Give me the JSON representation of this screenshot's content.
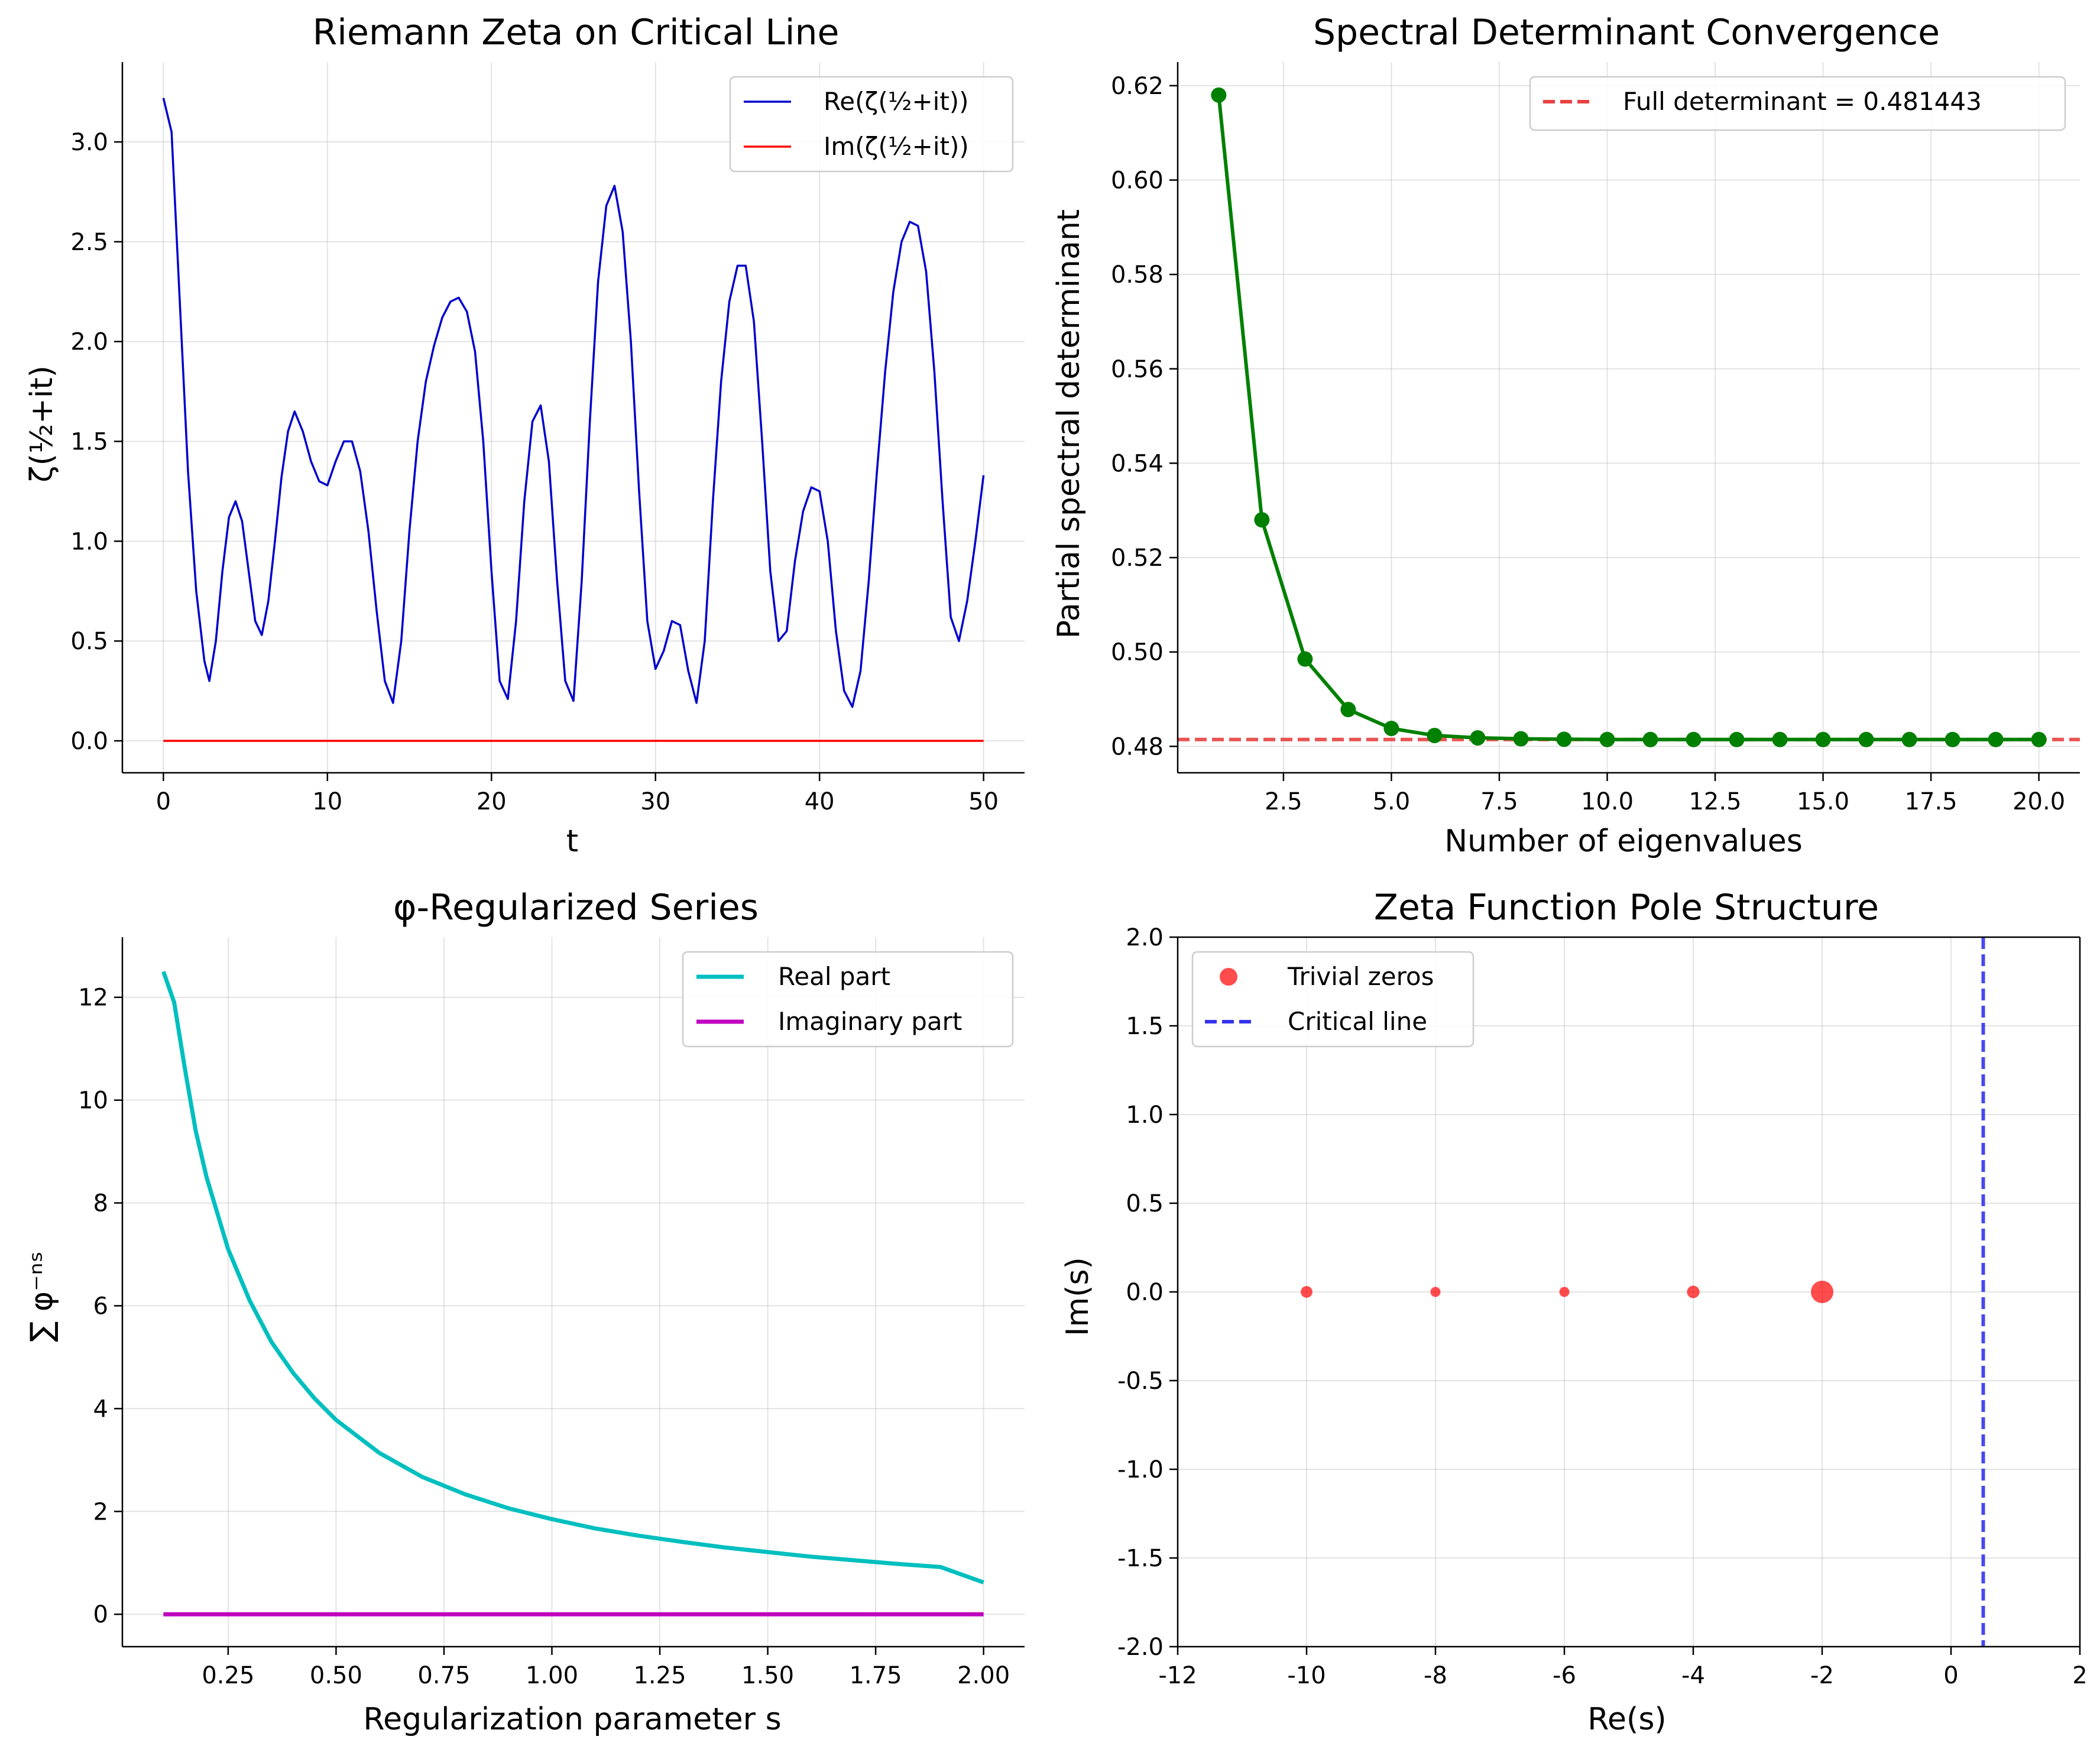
{
  "chart_data": [
    {
      "id": "zeta",
      "type": "line",
      "title": "Riemann Zeta on Critical Line",
      "xlabel": "t",
      "ylabel": "ζ(½+it)",
      "xlim": [
        -2.5,
        52.5
      ],
      "ylim": [
        -0.16,
        3.4
      ],
      "xticks": [
        0,
        10,
        20,
        30,
        40,
        50
      ],
      "xtick_labels": [
        "0",
        "10",
        "20",
        "30",
        "40",
        "50"
      ],
      "yticks": [
        0,
        0.5,
        1,
        1.5,
        2,
        2.5,
        3
      ],
      "ytick_labels": [
        "0.0",
        "0.5",
        "1.0",
        "1.5",
        "2.0",
        "2.5",
        "3.0"
      ],
      "grid": true,
      "legend": "top-right",
      "series": [
        {
          "name": "Re(ζ(½+it))",
          "color": "#0000cc",
          "x": [
            0.0,
            0.5,
            1.0,
            1.5,
            2.0,
            2.5,
            2.8,
            3.2,
            3.6,
            4.0,
            4.4,
            4.8,
            5.2,
            5.6,
            6.0,
            6.4,
            6.8,
            7.2,
            7.6,
            8.0,
            8.5,
            9.0,
            9.5,
            10.0,
            10.5,
            11.0,
            11.5,
            12.0,
            12.5,
            13.0,
            13.5,
            14.0,
            14.5,
            15.0,
            15.5,
            16.0,
            16.5,
            17.0,
            17.5,
            18.0,
            18.5,
            19.0,
            19.5,
            20.0,
            20.5,
            21.0,
            21.5,
            22.0,
            22.5,
            23.0,
            23.5,
            24.0,
            24.5,
            25.0,
            25.5,
            26.0,
            26.5,
            27.0,
            27.5,
            28.0,
            28.5,
            29.0,
            29.5,
            30.0,
            30.5,
            31.0,
            31.5,
            32.0,
            32.5,
            33.0,
            33.5,
            34.0,
            34.5,
            35.0,
            35.5,
            36.0,
            36.5,
            37.0,
            37.5,
            38.0,
            38.5,
            39.0,
            39.5,
            40.0,
            40.5,
            41.0,
            41.5,
            42.0,
            42.5,
            43.0,
            43.5,
            44.0,
            44.5,
            45.0,
            45.5,
            46.0,
            46.5,
            47.0,
            47.5,
            48.0,
            48.5,
            49.0,
            49.5,
            50.0
          ],
          "y": [
            3.22,
            3.05,
            2.2,
            1.35,
            0.75,
            0.4,
            0.3,
            0.5,
            0.85,
            1.12,
            1.2,
            1.1,
            0.85,
            0.6,
            0.53,
            0.7,
            1.0,
            1.32,
            1.55,
            1.65,
            1.55,
            1.4,
            1.3,
            1.28,
            1.4,
            1.5,
            1.5,
            1.35,
            1.05,
            0.65,
            0.3,
            0.19,
            0.5,
            1.05,
            1.5,
            1.8,
            1.98,
            2.12,
            2.2,
            2.22,
            2.15,
            1.95,
            1.5,
            0.85,
            0.3,
            0.21,
            0.6,
            1.2,
            1.6,
            1.68,
            1.4,
            0.8,
            0.3,
            0.2,
            0.8,
            1.6,
            2.3,
            2.68,
            2.78,
            2.55,
            2.0,
            1.25,
            0.6,
            0.36,
            0.45,
            0.6,
            0.58,
            0.35,
            0.19,
            0.5,
            1.2,
            1.8,
            2.2,
            2.38,
            2.38,
            2.1,
            1.5,
            0.85,
            0.5,
            0.55,
            0.9,
            1.15,
            1.27,
            1.25,
            1.0,
            0.55,
            0.25,
            0.17,
            0.35,
            0.8,
            1.35,
            1.85,
            2.25,
            2.5,
            2.6,
            2.58,
            2.35,
            1.85,
            1.2,
            0.62,
            0.5,
            0.7,
            1.0,
            1.33
          ]
        },
        {
          "name": "Im(ζ(½+it))",
          "color": "#ff0000",
          "x": [
            0,
            50
          ],
          "y": [
            0,
            0
          ]
        }
      ]
    },
    {
      "id": "spectral",
      "type": "line",
      "title": "Spectral Determinant Convergence",
      "xlabel": "Number of eigenvalues",
      "ylabel": "Partial spectral determinant",
      "xlim": [
        0.05,
        20.95
      ],
      "ylim": [
        0.4744,
        0.625
      ],
      "xticks": [
        2.5,
        5,
        7.5,
        10,
        12.5,
        15,
        17.5,
        20
      ],
      "xtick_labels": [
        "2.5",
        "5.0",
        "7.5",
        "10.0",
        "12.5",
        "15.0",
        "17.5",
        "20.0"
      ],
      "yticks": [
        0.48,
        0.5,
        0.52,
        0.54,
        0.56,
        0.58,
        0.6,
        0.62
      ],
      "ytick_labels": [
        "0.48",
        "0.50",
        "0.52",
        "0.54",
        "0.56",
        "0.58",
        "0.60",
        "0.62"
      ],
      "grid": true,
      "legend": "top-right",
      "series": [
        {
          "name": "",
          "color": "#008000",
          "marker": "circle",
          "x": [
            1,
            2,
            3,
            4,
            5,
            6,
            7,
            8,
            9,
            10,
            11,
            12,
            13,
            14,
            15,
            16,
            17,
            18,
            19,
            20
          ],
          "y": [
            0.618,
            0.528,
            0.4985,
            0.4878,
            0.4838,
            0.4823,
            0.4818,
            0.4816,
            0.4815,
            0.48145,
            0.48144,
            0.481443,
            0.481443,
            0.481443,
            0.481443,
            0.481443,
            0.481443,
            0.481443,
            0.481443,
            0.481443
          ]
        }
      ],
      "hline": {
        "name": "Full determinant = 0.481443",
        "y": 0.481443,
        "color": "#e84040"
      }
    },
    {
      "id": "phi",
      "type": "line",
      "title": "φ-Regularized Series",
      "xlabel": "Regularization parameter s",
      "ylabel": "∑ φ⁻ⁿˢ",
      "xlim": [
        0.005,
        2.095
      ],
      "ylim": [
        -0.63,
        13.17
      ],
      "xticks": [
        0.25,
        0.5,
        0.75,
        1,
        1.25,
        1.5,
        1.75,
        2
      ],
      "xtick_labels": [
        "0.25",
        "0.50",
        "0.75",
        "1.00",
        "1.25",
        "1.50",
        "1.75",
        "2.00"
      ],
      "yticks": [
        0,
        2,
        4,
        6,
        8,
        10,
        12
      ],
      "ytick_labels": [
        "0",
        "2",
        "4",
        "6",
        "8",
        "10",
        "12"
      ],
      "grid": true,
      "legend": "top-right",
      "series": [
        {
          "name": "Real part",
          "color": "#00bfbf",
          "x": [
            0.1,
            0.125,
            0.15,
            0.175,
            0.2,
            0.25,
            0.3,
            0.35,
            0.4,
            0.45,
            0.5,
            0.6,
            0.7,
            0.8,
            0.9,
            1.0,
            1.1,
            1.2,
            1.3,
            1.4,
            1.5,
            1.6,
            1.7,
            1.8,
            1.9,
            2.0
          ],
          "y": [
            12.5,
            11.9,
            10.6,
            9.4,
            8.5,
            7.1,
            6.1,
            5.3,
            4.7,
            4.2,
            3.78,
            3.14,
            2.67,
            2.33,
            2.06,
            1.85,
            1.67,
            1.53,
            1.41,
            1.3,
            1.21,
            1.12,
            1.05,
            0.98,
            0.92,
            0.62
          ]
        },
        {
          "name": "Imaginary part",
          "color": "#bf00bf",
          "x": [
            0.1,
            2.0
          ],
          "y": [
            0,
            0
          ]
        }
      ]
    },
    {
      "id": "poles",
      "type": "scatter",
      "title": "Zeta Function Pole Structure",
      "xlabel": "Re(s)",
      "ylabel": "Im(s)",
      "xlim": [
        -12,
        2
      ],
      "ylim": [
        -2,
        2
      ],
      "xticks": [
        -12,
        -10,
        -8,
        -6,
        -4,
        -2,
        0,
        2
      ],
      "xtick_labels": [
        "-12",
        "-10",
        "-8",
        "-6",
        "-4",
        "-2",
        "0",
        "2"
      ],
      "yticks": [
        -2,
        -1.5,
        -1,
        -0.5,
        0,
        0.5,
        1,
        1.5,
        2
      ],
      "ytick_labels": [
        "-2.0",
        "-1.5",
        "-1.0",
        "-0.5",
        "0.0",
        "0.5",
        "1.0",
        "1.5",
        "2.0"
      ],
      "grid": true,
      "legend": "top-left",
      "series": [
        {
          "name": "Trivial zeros",
          "color": "#ff0000",
          "x": [
            -10,
            -8,
            -6,
            -4,
            -2
          ],
          "y": [
            0,
            0,
            0,
            0,
            0
          ],
          "relative_size": [
            0.35,
            0.25,
            0.25,
            0.4,
            1.0
          ]
        }
      ],
      "vline": {
        "name": "Critical line",
        "x": 0.5,
        "color": "#3333ee"
      }
    }
  ]
}
